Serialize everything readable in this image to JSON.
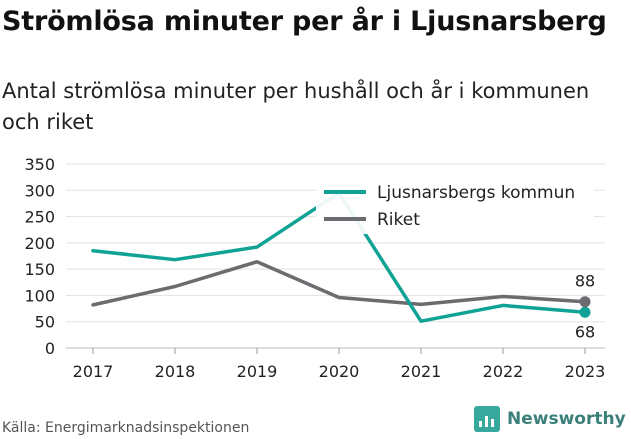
{
  "title": "Strömlösa minuter per år i Ljusnarsberg",
  "subtitle": "Antal strömlösa minuter per hushåll och år i kommunen och riket",
  "source": "Källa: Energimarknadsinspektionen",
  "brand": {
    "name": "Newsworthy",
    "icon": "bar-chart-icon",
    "color": "#3a7f7a"
  },
  "chart_data": {
    "type": "line",
    "title": "",
    "xlabel": "",
    "ylabel": "",
    "x": [
      "2017",
      "2018",
      "2019",
      "2020",
      "2021",
      "2022",
      "2023"
    ],
    "ylim": [
      0,
      350
    ],
    "yticks": [
      "0",
      "50",
      "100",
      "150",
      "200",
      "250",
      "300",
      "350"
    ],
    "grid": true,
    "legend": "top-right",
    "series": [
      {
        "name": "Ljusnarsbergs kommun",
        "color": "#0fa295",
        "values": [
          185,
          168,
          192,
          295,
          51,
          81,
          68
        ],
        "end_label": "68"
      },
      {
        "name": "Riket",
        "color": "#6b6b70",
        "values": [
          82,
          117,
          164,
          96,
          83,
          98,
          88
        ],
        "end_label": "88"
      }
    ]
  }
}
